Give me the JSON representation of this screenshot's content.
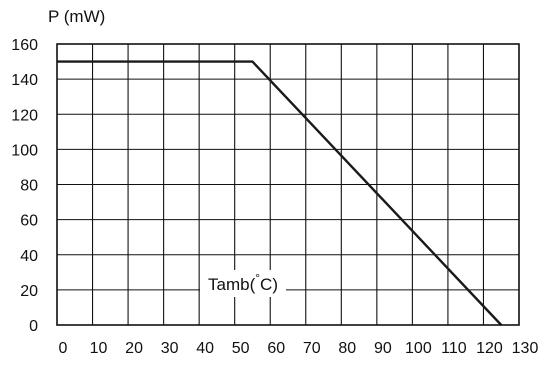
{
  "chart_data": {
    "type": "line",
    "ylabel": "P (mW)",
    "xlabel_prefix": "Tamb(",
    "xlabel_degree": "°",
    "xlabel_suffix": "C)",
    "xlim": [
      0,
      130
    ],
    "ylim": [
      0,
      160
    ],
    "x_ticks": [
      0,
      10,
      20,
      30,
      40,
      50,
      60,
      70,
      80,
      90,
      100,
      110,
      120,
      130
    ],
    "y_ticks": [
      0,
      20,
      40,
      60,
      80,
      100,
      120,
      140,
      160
    ],
    "grid": true,
    "series": [
      {
        "x": [
          0,
          55,
          125
        ],
        "y": [
          150,
          150,
          0
        ],
        "color": "#1a1a1a"
      }
    ]
  }
}
